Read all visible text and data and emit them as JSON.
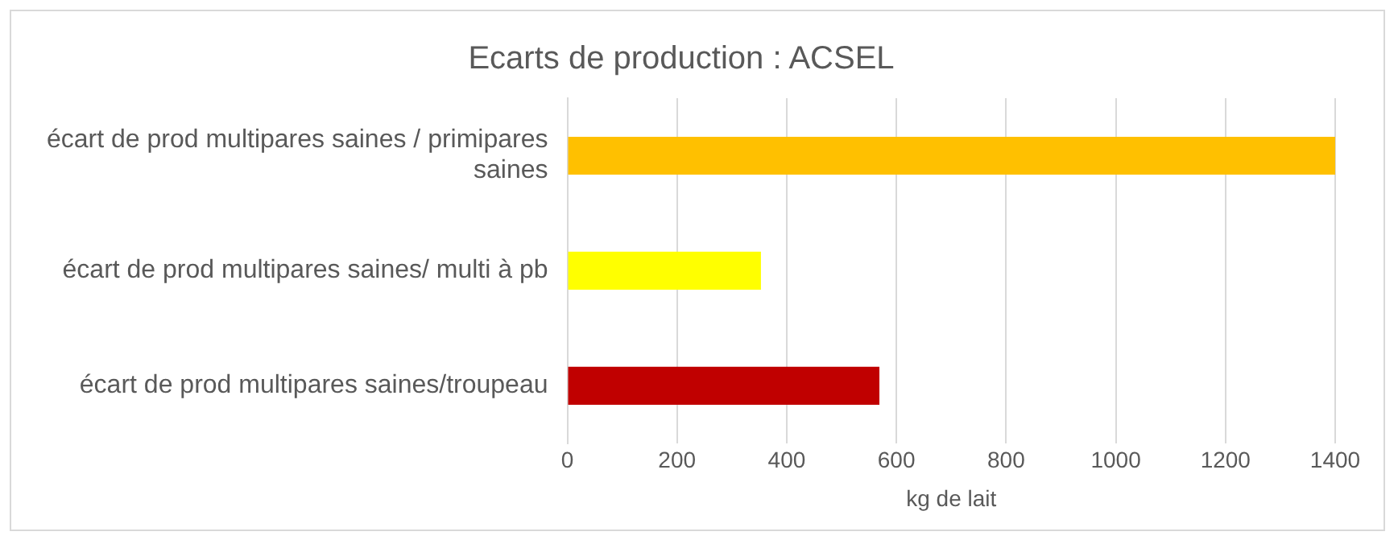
{
  "chart_data": {
    "type": "bar",
    "orientation": "horizontal",
    "title": "Ecarts de production : ACSEL",
    "xlabel": "kg de lait",
    "categories": [
      "écart de prod multipares saines / primipares saines",
      "écart de prod multipares saines/ multi à pb",
      "écart de prod multipares saines/troupeau"
    ],
    "values": [
      1400,
      353,
      569
    ],
    "colors": [
      "#ffc000",
      "#ffff00",
      "#c00000"
    ],
    "xlim": [
      0,
      1400
    ],
    "xticks": [
      0,
      200,
      400,
      600,
      800,
      1000,
      1200,
      1400
    ],
    "grid": "x",
    "legend": false
  }
}
